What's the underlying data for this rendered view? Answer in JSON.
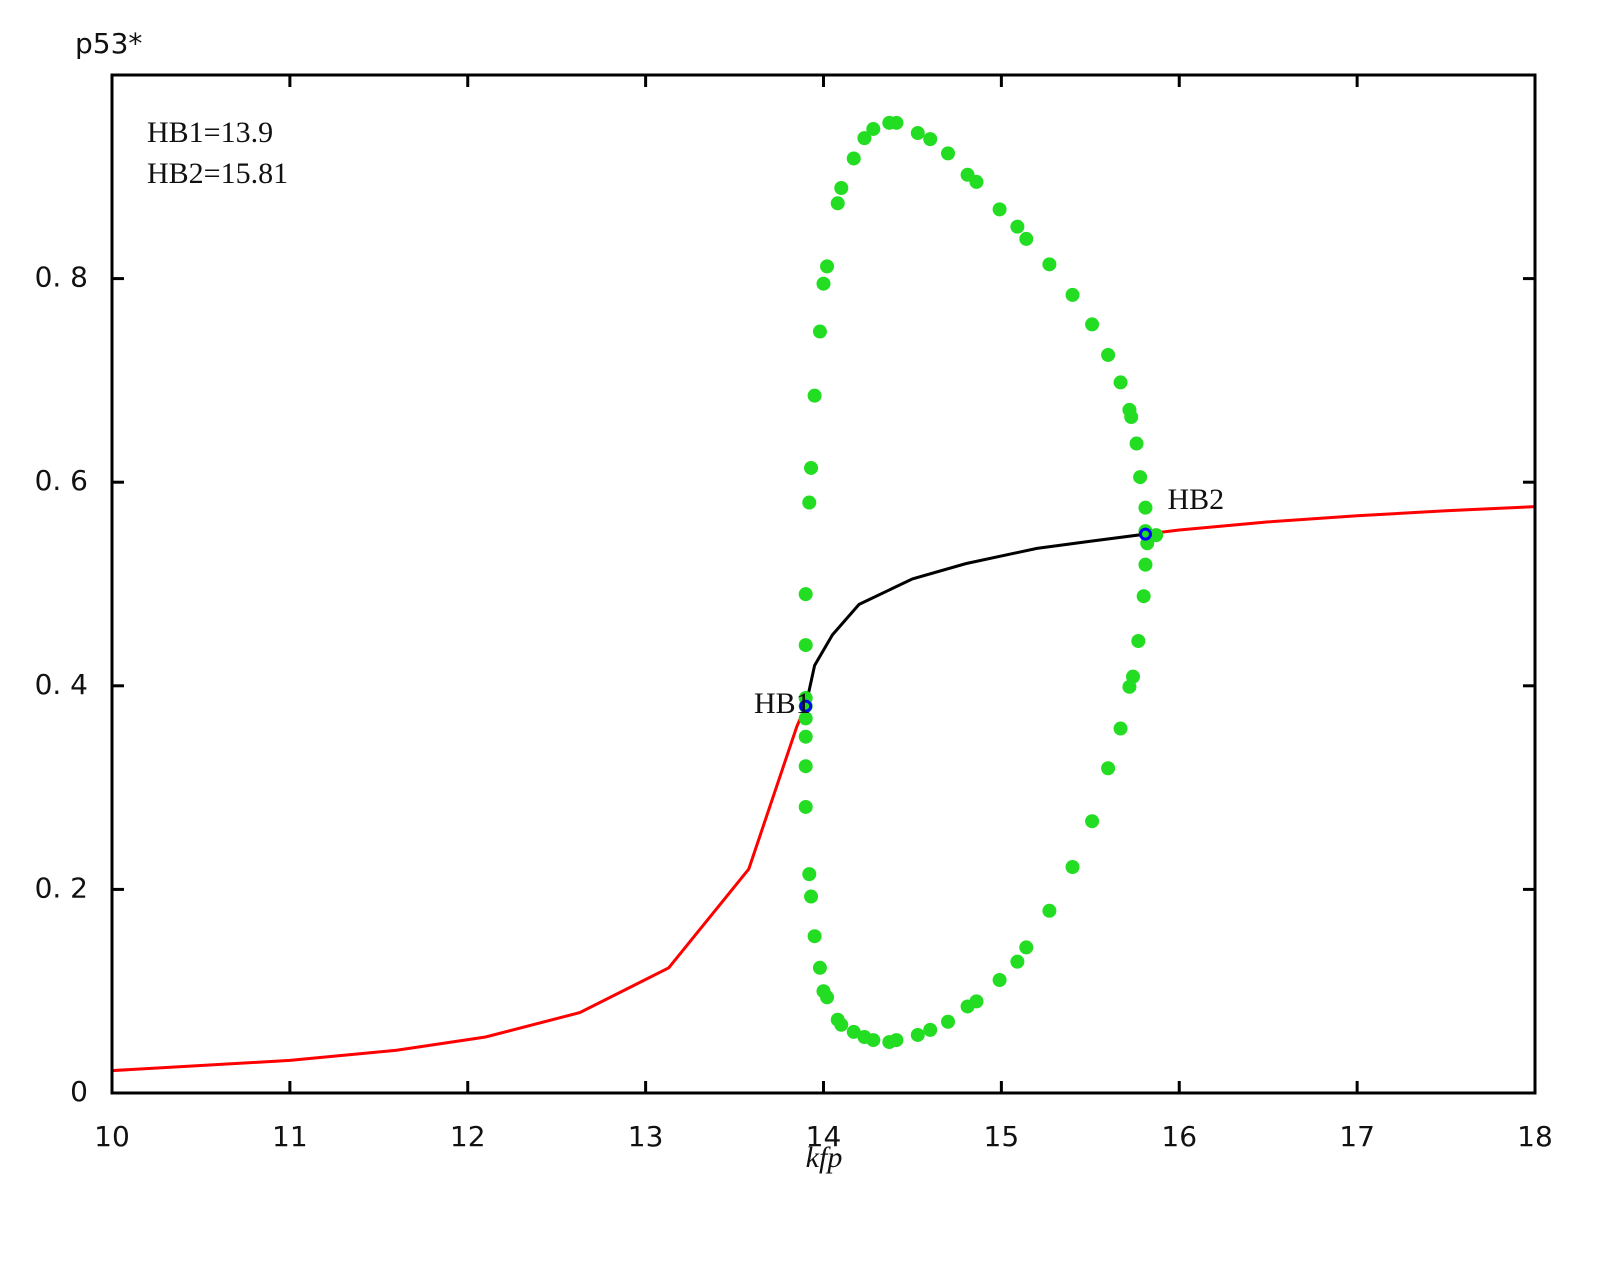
{
  "chart_data": {
    "type": "line",
    "ylabel": "p53*",
    "xlabel": "kfp",
    "xlim": [
      10,
      18
    ],
    "ylim": [
      0,
      1
    ],
    "xticks": [
      10,
      11,
      12,
      13,
      14,
      15,
      16,
      17,
      18
    ],
    "yticks": [
      0,
      {
        "value": 0.2,
        "label": "0. 2"
      },
      {
        "value": 0.4,
        "label": "0. 4"
      },
      {
        "value": 0.6,
        "label": "0. 6"
      },
      {
        "value": 0.8,
        "label": "0. 8"
      }
    ],
    "annotations": [
      "HB1=13.9",
      "HB2=15.81"
    ],
    "series": [
      {
        "type": "line",
        "color": "#ff0000",
        "x": [
          10,
          10.5,
          11,
          11.6,
          12.1,
          12.63,
          13.13,
          13.58,
          13.85,
          13.9
        ],
        "y": [
          0.022,
          0.027,
          0.032,
          0.042,
          0.055,
          0.079,
          0.123,
          0.22,
          0.36,
          0.38
        ]
      },
      {
        "type": "line",
        "color": "#000000",
        "x": [
          13.9,
          13.95,
          14.05,
          14.2,
          14.5,
          14.8,
          15.2,
          15.5,
          15.81
        ],
        "y": [
          0.38,
          0.42,
          0.45,
          0.48,
          0.505,
          0.52,
          0.535,
          0.542,
          0.549
        ]
      },
      {
        "type": "line",
        "color": "#ff0000",
        "x": [
          15.81,
          16,
          16.5,
          17,
          17.5,
          18
        ],
        "y": [
          0.549,
          0.553,
          0.561,
          0.567,
          0.572,
          0.576
        ]
      },
      {
        "type": "scatter",
        "color": "#22dd22",
        "x": [
          13.9,
          13.9,
          13.9,
          13.9,
          13.9,
          13.92,
          13.93,
          13.95,
          13.98,
          14.0,
          14.02,
          14.08,
          14.1,
          14.17,
          14.23,
          14.28,
          14.37,
          14.41,
          14.53,
          14.6,
          14.7,
          14.81,
          14.86,
          14.99,
          15.09,
          15.14,
          15.27,
          15.4,
          15.51,
          15.6,
          15.67,
          15.72,
          15.73,
          15.76,
          15.78,
          15.81,
          15.81,
          15.82,
          15.87,
          15.81,
          15.8,
          15.77,
          15.74,
          15.72,
          15.67,
          15.6,
          15.51,
          15.4,
          15.27,
          15.14,
          15.09,
          14.99,
          14.86,
          14.81,
          14.7,
          14.6,
          14.53,
          14.41,
          14.37,
          14.28,
          14.23,
          14.17,
          14.1,
          14.08,
          14.02,
          14.0,
          13.98,
          13.95,
          13.93,
          13.92,
          13.9,
          13.9,
          13.9
        ],
        "y": [
          0.368,
          0.38,
          0.388,
          0.44,
          0.49,
          0.58,
          0.614,
          0.685,
          0.748,
          0.795,
          0.812,
          0.874,
          0.889,
          0.918,
          0.938,
          0.947,
          0.953,
          0.953,
          0.943,
          0.937,
          0.923,
          0.902,
          0.895,
          0.868,
          0.851,
          0.839,
          0.814,
          0.784,
          0.755,
          0.725,
          0.698,
          0.671,
          0.664,
          0.638,
          0.605,
          0.575,
          0.552,
          0.54,
          0.548,
          0.519,
          0.488,
          0.444,
          0.409,
          0.399,
          0.358,
          0.319,
          0.267,
          0.222,
          0.179,
          0.143,
          0.129,
          0.111,
          0.09,
          0.085,
          0.07,
          0.062,
          0.057,
          0.052,
          0.05,
          0.052,
          0.055,
          0.06,
          0.067,
          0.072,
          0.094,
          0.1,
          0.123,
          0.154,
          0.193,
          0.215,
          0.281,
          0.321,
          0.35
        ]
      }
    ],
    "points": [
      {
        "label": "HB1",
        "x": 13.9,
        "y": 0.38,
        "color": "#0000ff"
      },
      {
        "label": "HB2",
        "x": 15.81,
        "y": 0.549,
        "color": "#0000ff"
      }
    ]
  }
}
